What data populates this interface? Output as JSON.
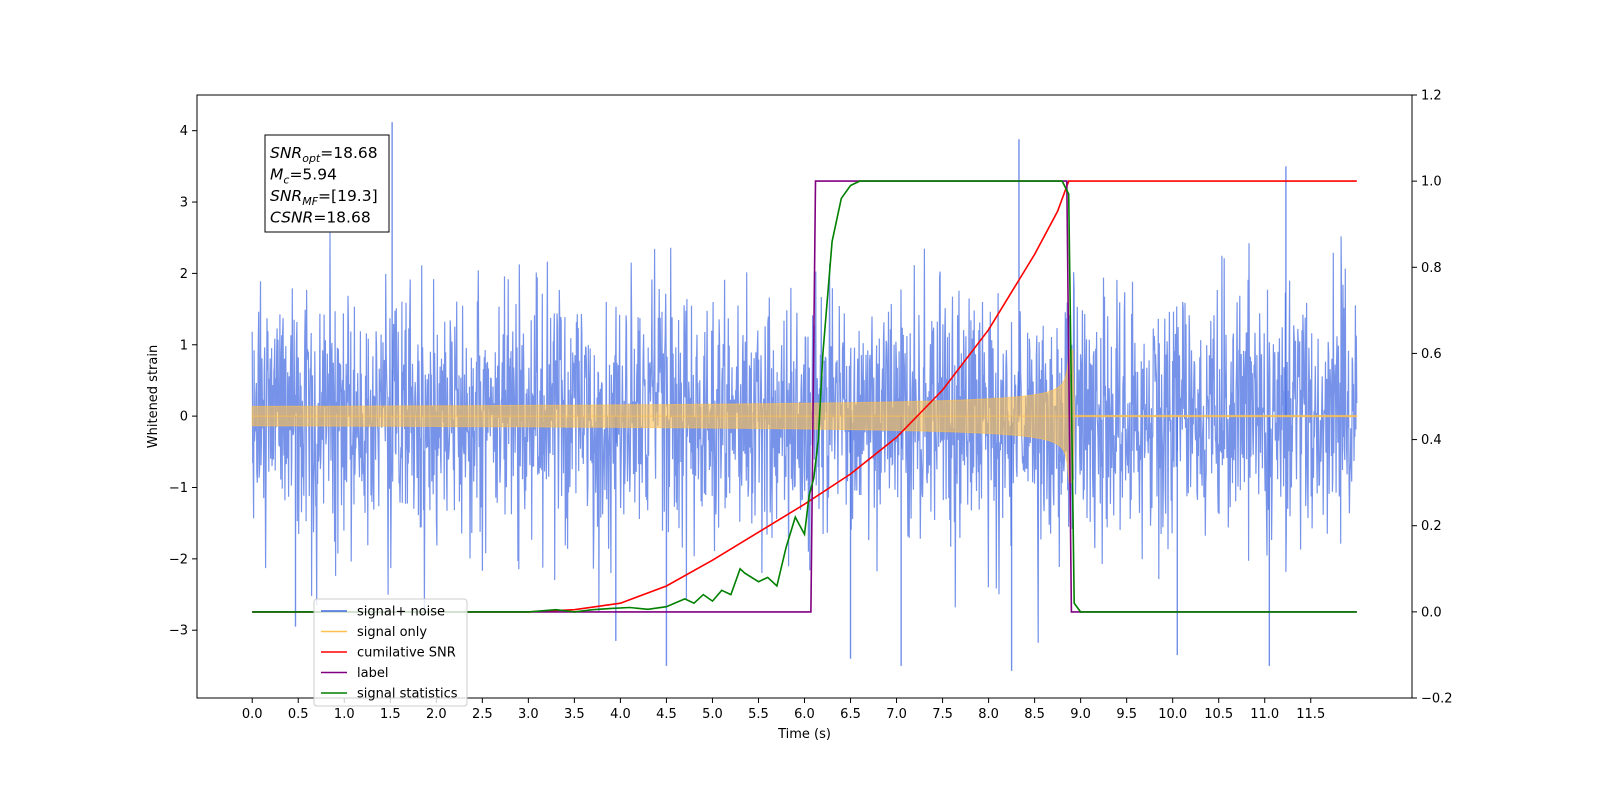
{
  "chart_data": {
    "type": "line",
    "xlabel": "Time (s)",
    "ylabel": "Whitened strain",
    "xlim": [
      -0.6,
      12.6
    ],
    "ylim_left": [
      -3.95,
      4.5
    ],
    "ylim_right": [
      -0.2,
      1.2
    ],
    "x_ticks": [
      0.0,
      0.5,
      1.0,
      1.5,
      2.0,
      2.5,
      3.0,
      3.5,
      4.0,
      4.5,
      5.0,
      5.5,
      6.0,
      6.5,
      7.0,
      7.5,
      8.0,
      8.5,
      9.0,
      9.5,
      10.0,
      10.5,
      11.0,
      11.5
    ],
    "x_tick_labels": [
      "0.0",
      "0.5",
      "1.0",
      "1.5",
      "2.0",
      "2.5",
      "3.0",
      "3.5",
      "4.0",
      "4.5",
      "5.0",
      "5.5",
      "6.0",
      "6.5",
      "7.0",
      "7.5",
      "8.0",
      "8.5",
      "9.0",
      "9.5",
      "10.0",
      "10.5",
      "11.0",
      "11.5"
    ],
    "y_left_ticks": [
      -3,
      -2,
      -1,
      0,
      1,
      2,
      3,
      4
    ],
    "y_left_tick_labels": [
      "−3",
      "−2",
      "−1",
      "0",
      "1",
      "2",
      "3",
      "4"
    ],
    "y_right_ticks": [
      -0.2,
      0.0,
      0.2,
      0.4,
      0.6,
      0.8,
      1.0,
      1.2
    ],
    "y_right_tick_labels": [
      "−0.2",
      "0.0",
      "0.2",
      "0.4",
      "0.6",
      "0.8",
      "1.0",
      "1.2"
    ],
    "grid": false,
    "legend_position": "lower-left",
    "series": [
      {
        "name": "signal+ noise",
        "axis": "left",
        "color": "#4169e1",
        "noise_std": 0.85,
        "x_range": [
          0.0,
          12.0
        ],
        "spikes": [
          [
            1.52,
            4.12
          ],
          [
            8.33,
            3.88
          ],
          [
            11.23,
            3.5
          ],
          [
            0.47,
            -2.95
          ],
          [
            4.5,
            -3.5
          ],
          [
            6.5,
            -3.4
          ],
          [
            7.05,
            -3.5
          ],
          [
            8.25,
            -3.57
          ],
          [
            11.05,
            -3.5
          ],
          [
            10.05,
            -3.35
          ],
          [
            3.95,
            -3.15
          ]
        ]
      },
      {
        "name": "signal only",
        "axis": "left",
        "color": "#ffc04d",
        "envelope": {
          "t_merge": 8.87,
          "t_start": 0.0,
          "amp_end": 1.0,
          "amp_at_6": 0.18
        }
      },
      {
        "name": "cumilative SNR",
        "axis": "right",
        "color": "#ff0000",
        "x": [
          0.0,
          3.0,
          3.5,
          4.0,
          4.5,
          5.0,
          5.5,
          6.0,
          6.5,
          7.0,
          7.5,
          8.0,
          8.5,
          8.75,
          8.87,
          8.9,
          9.0,
          12.0
        ],
        "y": [
          0.0,
          0.0,
          0.005,
          0.02,
          0.06,
          0.12,
          0.185,
          0.25,
          0.32,
          0.405,
          0.515,
          0.655,
          0.83,
          0.93,
          1.0,
          1.0,
          1.0,
          1.0
        ]
      },
      {
        "name": "label",
        "axis": "right",
        "color": "#800080",
        "x": [
          0.0,
          6.07,
          6.12,
          8.85,
          8.9,
          12.0
        ],
        "y": [
          0.0,
          0.0,
          1.0,
          1.0,
          0.0,
          0.0
        ]
      },
      {
        "name": "signal statistics",
        "axis": "right",
        "color": "#008000",
        "x": [
          0.0,
          3.0,
          3.3,
          3.5,
          3.7,
          3.9,
          4.1,
          4.3,
          4.5,
          4.7,
          4.8,
          4.9,
          5.0,
          5.1,
          5.2,
          5.3,
          5.35,
          5.5,
          5.6,
          5.7,
          5.8,
          5.9,
          5.95,
          6.0,
          6.05,
          6.1,
          6.15,
          6.2,
          6.3,
          6.4,
          6.5,
          6.6,
          6.8,
          7.0,
          8.5,
          8.8,
          8.87,
          8.93,
          9.0,
          12.0
        ],
        "y": [
          0.0,
          0.0,
          0.005,
          0.0,
          0.005,
          0.008,
          0.01,
          0.006,
          0.012,
          0.03,
          0.02,
          0.04,
          0.025,
          0.05,
          0.04,
          0.1,
          0.09,
          0.07,
          0.08,
          0.06,
          0.15,
          0.22,
          0.2,
          0.18,
          0.27,
          0.31,
          0.4,
          0.6,
          0.86,
          0.96,
          0.99,
          1.0,
          1.0,
          1.0,
          1.0,
          1.0,
          0.97,
          0.02,
          0.0,
          0.0
        ]
      }
    ],
    "legend": [
      {
        "label": "signal+ noise",
        "color": "#4169e1"
      },
      {
        "label": "signal only",
        "color": "#ffc04d"
      },
      {
        "label": "cumilative SNR",
        "color": "#ff0000"
      },
      {
        "label": "label",
        "color": "#800080"
      },
      {
        "label": "signal statistics",
        "color": "#008000"
      }
    ],
    "annotations": {
      "snr_opt_main": "SNR",
      "snr_opt_sub": "opt",
      "snr_opt_val": "=18.68",
      "mc_main": "M",
      "mc_sub": "c",
      "mc_val": "=5.94",
      "snr_mf_main": "SNR",
      "snr_mf_sub": "MF",
      "snr_mf_val": "=[19.3]",
      "csnr_main": "CSNR",
      "csnr_val": "=18.68"
    }
  }
}
